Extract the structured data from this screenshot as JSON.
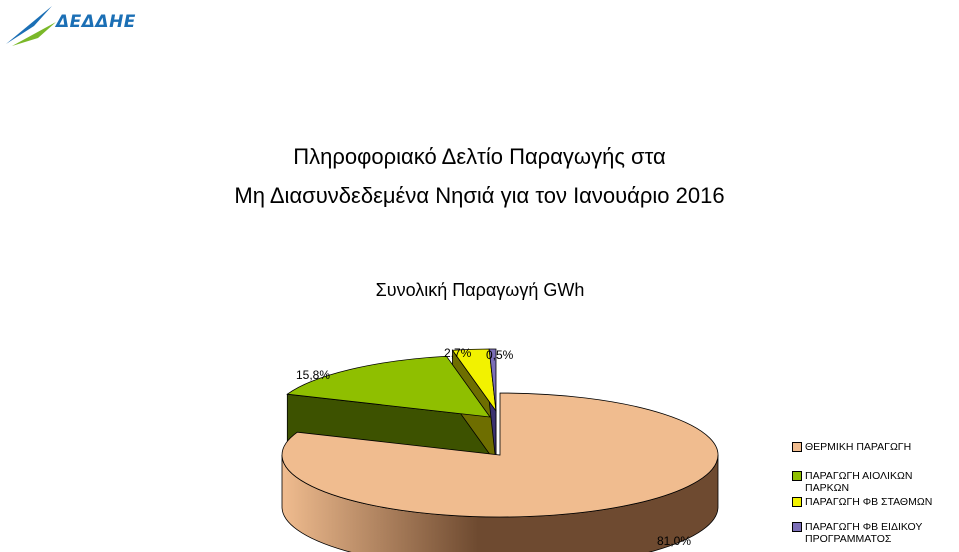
{
  "brand": {
    "name": "ΔΕΔΔΗΕ",
    "colors": {
      "blue": "#1b6fb5",
      "green": "#7ab829"
    }
  },
  "title_lines": [
    "Πληροφοριακό Δελτίο Παραγωγής στα",
    "Μη Διασυνδεδεμένα Νησιά για τον Ιανουάριο 2016"
  ],
  "chart_data": {
    "type": "pie",
    "title": "Συνολική Παραγωγή GWh",
    "legend_position": "right",
    "slices": [
      {
        "name": "ΘΕΡΜΙΚΗ ΠΑΡΑΓΩΓΗ",
        "value": 81.0,
        "label": "81,0%",
        "color": "#f0bc8f",
        "side_color": "#6e4a30"
      },
      {
        "name": "ΠΑΡΑΓΩΓΗ ΑΙΟΛΙΚΩΝ ΠΑΡΚΩΝ",
        "value": 15.8,
        "label": "15,8%",
        "color": "#8fbf00",
        "side_color": "#3d5200"
      },
      {
        "name": "ΠΑΡΑΓΩΓΗ ΦΒ ΣΤΑΘΜΩΝ",
        "value": 2.7,
        "label": "2,7%",
        "color": "#f2f200",
        "side_color": "#6e6e00"
      },
      {
        "name": "ΠΑΡΑΓΩΓΗ ΦΒ ΕΙΔΙΚΟΥ ΠΡΟΓΡΑΜΜΑΤΟΣ",
        "value": 0.5,
        "label": "0,5%",
        "color": "#7c6fb8",
        "side_color": "#3a3170"
      }
    ]
  }
}
